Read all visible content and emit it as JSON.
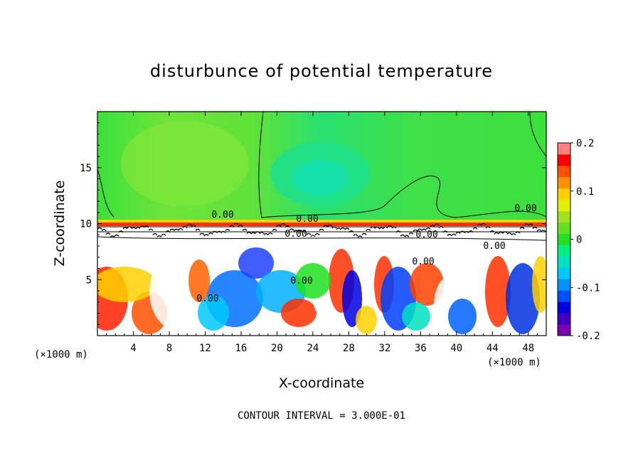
{
  "chart_data": {
    "type": "heatmap",
    "title": "disturbunce of potential temperature",
    "xlabel": "X-coordinate",
    "ylabel": "Z-coordinate",
    "x_unit_label": "(×1000 m)",
    "xlim": [
      0,
      50
    ],
    "ylim": [
      0,
      20
    ],
    "x_ticks": [
      4,
      8,
      12,
      16,
      20,
      24,
      28,
      32,
      36,
      40,
      44,
      48
    ],
    "y_ticks": [
      5,
      10,
      15
    ],
    "colorbar": {
      "range": [
        -0.2,
        0.2
      ],
      "tick_labels": [
        "0.2",
        "0.1",
        "0",
        "-0.1",
        "-0.2"
      ],
      "tick_values": [
        0.2,
        0.1,
        0,
        -0.1,
        -0.2
      ],
      "colors": [
        "#7a00b0",
        "#4400c0",
        "#0000e0",
        "#0050ff",
        "#0090ff",
        "#00c8ff",
        "#00e0c0",
        "#00f080",
        "#20e020",
        "#60e020",
        "#a0e020",
        "#e0f000",
        "#ffd000",
        "#ff9000",
        "#ff5000",
        "#ff0000",
        "#ff8080"
      ]
    },
    "contour_labels": [
      "0.00",
      "0.00",
      "0.00",
      "0.00",
      "0.00",
      "0.00",
      "0.00",
      "0.00",
      "0.00"
    ],
    "contour_interval_text": "CONTOUR INTERVAL = 3.000E-01"
  }
}
